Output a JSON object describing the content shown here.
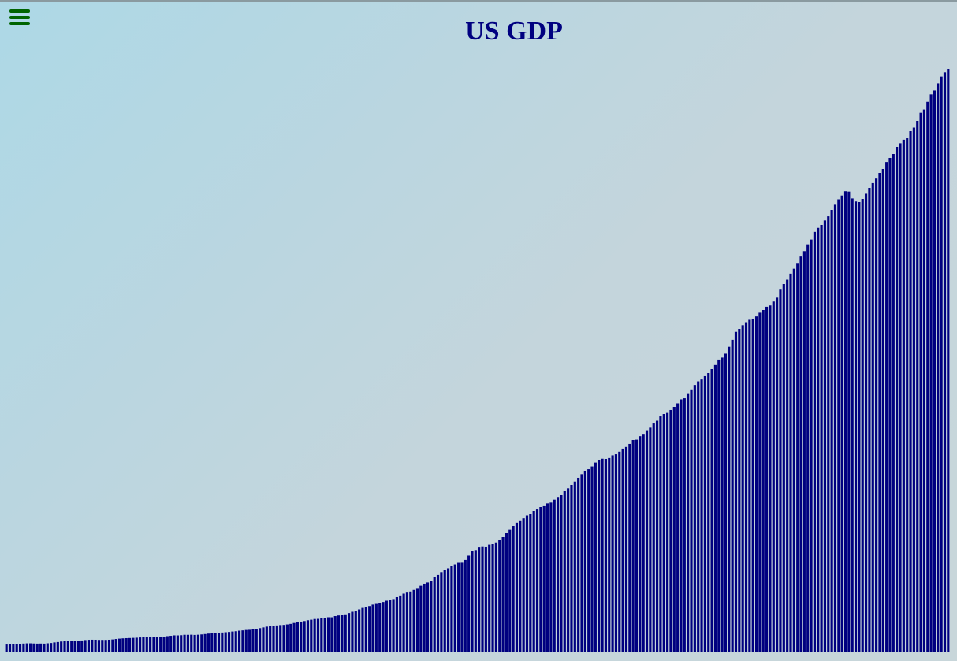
{
  "chart_data": {
    "type": "bar",
    "title": "US GDP",
    "color": "#000080",
    "values": [
      243,
      246,
      250,
      260,
      266,
      273,
      279,
      280,
      275,
      271,
      273,
      271,
      281,
      290,
      308,
      320,
      336,
      344,
      351,
      356,
      360,
      361,
      368,
      381,
      389,
      392,
      391,
      386,
      386,
      386,
      391,
      400,
      414,
      425,
      434,
      440,
      444,
      449,
      454,
      462,
      470,
      473,
      480,
      475,
      468,
      472,
      486,
      501,
      512,
      526,
      525,
      531,
      544,
      543,
      546,
      540,
      546,
      555,
      567,
      581,
      595,
      602,
      610,
      614,
      623,
      631,
      645,
      654,
      671,
      680,
      693,
      698,
      719,
      732,
      750,
      773,
      797,
      807,
      820,
      834,
      846,
      851,
      866,
      883,
      911,
      937,
      953,
      970,
      995,
      1011,
      1033,
      1037,
      1051,
      1067,
      1087,
      1086,
      1123,
      1143,
      1165,
      1178,
      1218,
      1258,
      1287,
      1331,
      1378,
      1414,
      1436,
      1480,
      1501,
      1530,
      1560,
      1600,
      1616,
      1651,
      1710,
      1762,
      1820,
      1852,
      1886,
      1935,
      1993,
      2061,
      2126,
      2164,
      2202,
      2331,
      2396,
      2484,
      2556,
      2602,
      2667,
      2723,
      2796,
      2799,
      2860,
      2993,
      3131,
      3168,
      3270,
      3281,
      3274,
      3332,
      3367,
      3402,
      3473,
      3578,
      3689,
      3795,
      3908,
      4010,
      4084,
      4148,
      4238,
      4299,
      4387,
      4444,
      4508,
      4545,
      4608,
      4657,
      4722,
      4806,
      4885,
      5008,
      5073,
      5190,
      5283,
      5399,
      5512,
      5619,
      5690,
      5751,
      5872,
      5960,
      6015,
      6004,
      6036,
      6096,
      6154,
      6209,
      6304,
      6380,
      6474,
      6573,
      6605,
      6689,
      6762,
      6874,
      6977,
      7107,
      7193,
      7327,
      7385,
      7435,
      7524,
      7609,
      7707,
      7829,
      7888,
      8021,
      8139,
      8277,
      8390,
      8472,
      8575,
      8656,
      8776,
      8920,
      9064,
      9150,
      9271,
      9485,
      9700,
      9948,
      10021,
      10129,
      10222,
      10321,
      10333,
      10426,
      10542,
      10611,
      10701,
      10766,
      10888,
      11008,
      11255,
      11416,
      11565,
      11728,
      11904,
      12060,
      12283,
      12426,
      12637,
      12809,
      13048,
      13172,
      13257,
      13402,
      13530,
      13707,
      13889,
      14033,
      14150,
      14284,
      14273,
      14084,
      13990,
      13950,
      14060,
      14230,
      14400,
      14560,
      14700,
      14860,
      14990,
      15190,
      15340,
      15460,
      15670,
      15770,
      15880,
      15950,
      16170,
      16280,
      16480,
      16740,
      16840,
      17080,
      17310,
      17430,
      17650,
      17840,
      17970,
      18100
    ]
  }
}
